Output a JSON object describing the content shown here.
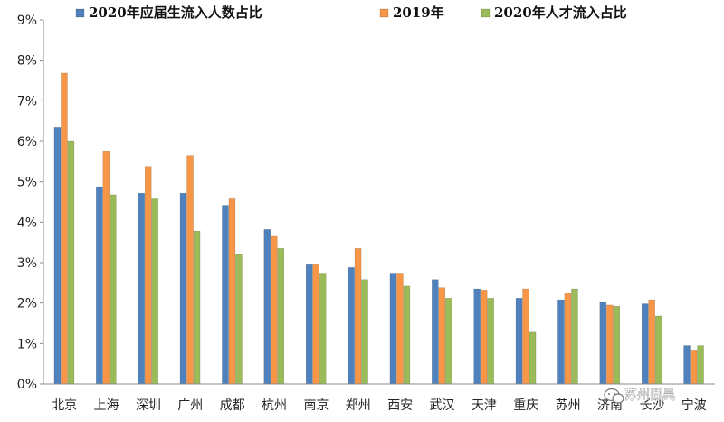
{
  "chart_data": {
    "type": "bar",
    "categories": [
      "北京",
      "上海",
      "深圳",
      "广州",
      "成都",
      "杭州",
      "南京",
      "郑州",
      "西安",
      "武汉",
      "天津",
      "重庆",
      "苏州",
      "济南",
      "长沙",
      "宁波"
    ],
    "series": [
      {
        "name": "2020年应届生流入人数占比",
        "color": "#4f81bd",
        "values": [
          6.35,
          4.88,
          4.72,
          4.72,
          4.42,
          3.82,
          2.95,
          2.88,
          2.72,
          2.58,
          2.35,
          2.12,
          2.08,
          2.02,
          1.98,
          0.95
        ]
      },
      {
        "name": "2019年",
        "color": "#f79646",
        "values": [
          7.68,
          5.75,
          5.38,
          5.65,
          4.58,
          3.65,
          2.95,
          3.35,
          2.72,
          2.38,
          2.32,
          2.35,
          2.25,
          1.95,
          2.08,
          0.82
        ]
      },
      {
        "name": "2020年人才流入占比",
        "color": "#9bbb59",
        "values": [
          6.0,
          4.68,
          4.58,
          3.78,
          3.2,
          3.35,
          2.72,
          2.58,
          2.42,
          2.12,
          2.12,
          1.28,
          2.35,
          1.92,
          1.68,
          0.95
        ]
      }
    ],
    "yticks": [
      "0%",
      "1%",
      "2%",
      "3%",
      "4%",
      "5%",
      "6%",
      "7%",
      "8%",
      "9%"
    ],
    "ylim": [
      0,
      9
    ],
    "legend": "top",
    "grid": false
  },
  "watermark": {
    "text": "苏州固昊",
    "icon": "wechat-icon"
  }
}
